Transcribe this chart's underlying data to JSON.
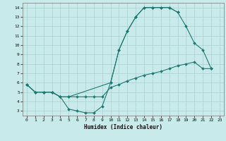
{
  "xlabel": "Humidex (Indice chaleur)",
  "bg_color": "#c8eaea",
  "line_color": "#1e7a72",
  "grid_color": "#a8d0d0",
  "xlim": [
    -0.5,
    23.5
  ],
  "ylim": [
    2.5,
    14.5
  ],
  "xticks": [
    0,
    1,
    2,
    3,
    4,
    5,
    6,
    7,
    8,
    9,
    10,
    11,
    12,
    13,
    14,
    15,
    16,
    17,
    18,
    19,
    20,
    21,
    22,
    23
  ],
  "yticks": [
    3,
    4,
    5,
    6,
    7,
    8,
    9,
    10,
    11,
    12,
    13,
    14
  ],
  "curve1_x": [
    0,
    1,
    2,
    3,
    4,
    5,
    10,
    11,
    12,
    13,
    14,
    15,
    16,
    17,
    18
  ],
  "curve1_y": [
    5.8,
    5.0,
    5.0,
    5.0,
    4.5,
    4.5,
    6.0,
    9.5,
    11.5,
    13.0,
    14.0,
    14.0,
    14.0,
    14.0,
    13.5
  ],
  "curve2_x": [
    0,
    1,
    2,
    3,
    4,
    5,
    6,
    7,
    8,
    9,
    10,
    11,
    12,
    13,
    14,
    15,
    16,
    17,
    18,
    19,
    20,
    21,
    22
  ],
  "curve2_y": [
    5.8,
    5.0,
    5.0,
    5.0,
    4.5,
    4.5,
    4.5,
    4.5,
    4.5,
    4.5,
    5.5,
    5.8,
    6.2,
    6.5,
    6.8,
    7.0,
    7.2,
    7.5,
    7.8,
    8.0,
    8.2,
    7.5,
    7.5
  ],
  "curve3_x": [
    0,
    1,
    2,
    3,
    4,
    5,
    6,
    7,
    8,
    9,
    10,
    11,
    12,
    13,
    14,
    15,
    16,
    17,
    18,
    19,
    20,
    21,
    22
  ],
  "curve3_y": [
    5.8,
    5.0,
    5.0,
    5.0,
    4.5,
    3.2,
    3.0,
    2.8,
    2.8,
    3.5,
    6.0,
    9.5,
    11.5,
    13.0,
    14.0,
    14.0,
    14.0,
    14.0,
    13.5,
    12.0,
    10.2,
    9.5,
    7.5
  ]
}
